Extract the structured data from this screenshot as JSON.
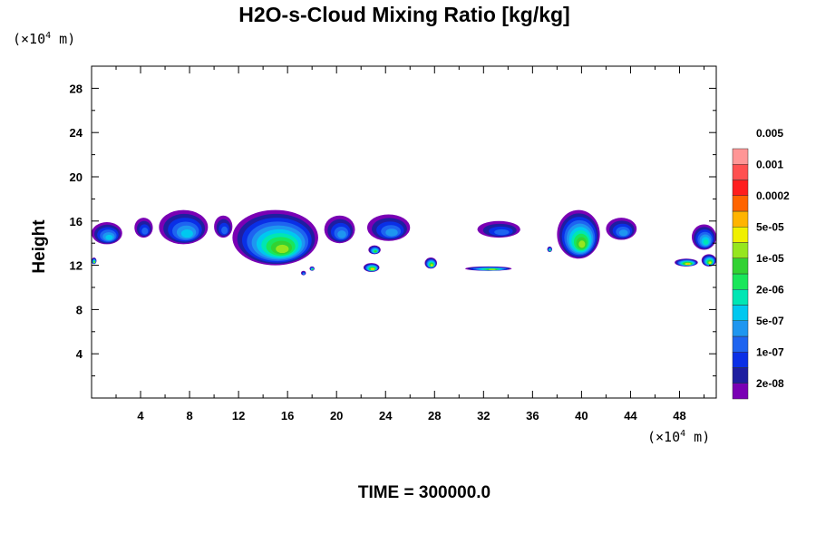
{
  "chart_data": {
    "type": "contour",
    "title": "H2O-s-Cloud Mixing Ratio [kg/kg]",
    "ylabel": "Height",
    "x_unit": {
      "prefix": "(×10",
      "exp": "4",
      "suffix": " m)"
    },
    "y_unit": {
      "prefix": "(×10",
      "exp": "4",
      "suffix": " m)"
    },
    "xlim": [
      0,
      51
    ],
    "ylim": [
      0,
      30
    ],
    "x_ticks": [
      4,
      8,
      12,
      16,
      20,
      24,
      28,
      32,
      36,
      40,
      44,
      48
    ],
    "x_tick_labels": [
      "4",
      "8",
      "12",
      "16",
      "20",
      "24",
      "28",
      "32",
      "36",
      "40",
      "44",
      "48"
    ],
    "y_ticks": [
      4,
      8,
      12,
      16,
      20,
      24,
      28
    ],
    "y_tick_labels": [
      "4",
      "8",
      "12",
      "16",
      "20",
      "24",
      "28"
    ],
    "colorbar": {
      "colors": [
        "#7a00b4",
        "#1e1ea0",
        "#0a2fe6",
        "#1e64f0",
        "#1e96f0",
        "#00c8f0",
        "#00e6b4",
        "#19e65a",
        "#32d232",
        "#96e61e",
        "#f0f000",
        "#ffb400",
        "#ff6400",
        "#ff1e1e",
        "#ff5050",
        "#ff9696"
      ],
      "labels": [
        "2e-08",
        "1e-07",
        "5e-07",
        "2e-06",
        "1e-05",
        "5e-05",
        "0.0002",
        "0.001",
        "0.005"
      ]
    },
    "cloud_regions": [
      {
        "x": [
          0,
          2.5
        ],
        "y": [
          13.9,
          15.9
        ],
        "max_level": 5
      },
      {
        "x": [
          3.5,
          5
        ],
        "y": [
          14.5,
          16.3
        ],
        "max_level": 3
      },
      {
        "x": [
          5.5,
          9.5
        ],
        "y": [
          13.9,
          17
        ],
        "max_level": 5
      },
      {
        "x": [
          10,
          11.5
        ],
        "y": [
          14.5,
          16.5
        ],
        "max_level": 3
      },
      {
        "x": [
          11.5,
          18.5
        ],
        "y": [
          12,
          17
        ],
        "max_level": 9
      },
      {
        "x": [
          19,
          21.5
        ],
        "y": [
          14,
          16.5
        ],
        "max_level": 4
      },
      {
        "x": [
          22.5,
          26
        ],
        "y": [
          14.2,
          16.6
        ],
        "max_level": 4
      },
      {
        "x": [
          31.5,
          35
        ],
        "y": [
          14.5,
          16
        ],
        "max_level": 3
      },
      {
        "x": [
          38,
          41.5
        ],
        "y": [
          12.6,
          17
        ],
        "max_level": 9
      },
      {
        "x": [
          42,
          44.5
        ],
        "y": [
          14.3,
          16.3
        ],
        "max_level": 4
      },
      {
        "x": [
          49,
          51
        ],
        "y": [
          13.4,
          15.7
        ],
        "max_level": 6
      },
      {
        "x": [
          30.5,
          34.3
        ],
        "y": [
          11.5,
          11.9
        ],
        "max_level": 9
      },
      {
        "x": [
          22.2,
          23.5
        ],
        "y": [
          11.4,
          12.2
        ],
        "max_level": 11
      },
      {
        "x": [
          27.2,
          28.2
        ],
        "y": [
          11.7,
          12.7
        ],
        "max_level": 10
      },
      {
        "x": [
          47.6,
          49.5
        ],
        "y": [
          11.9,
          12.6
        ],
        "max_level": 11
      },
      {
        "x": [
          49.8,
          51
        ],
        "y": [
          11.9,
          13
        ],
        "max_level": 10
      },
      {
        "x": [
          22.6,
          23.6
        ],
        "y": [
          13,
          13.8
        ],
        "max_level": 8
      },
      {
        "x": [
          37.2,
          37.6
        ],
        "y": [
          13.2,
          13.7
        ],
        "max_level": 7
      },
      {
        "x": [
          0,
          0.4
        ],
        "y": [
          12.1,
          12.7
        ],
        "max_level": 9
      },
      {
        "x": [
          17.1,
          17.5
        ],
        "y": [
          11.1,
          11.5
        ],
        "max_level": 4
      },
      {
        "x": [
          17.8,
          18.2
        ],
        "y": [
          11.5,
          11.9
        ],
        "max_level": 8
      }
    ]
  },
  "time_label": "TIME = 300000.0"
}
